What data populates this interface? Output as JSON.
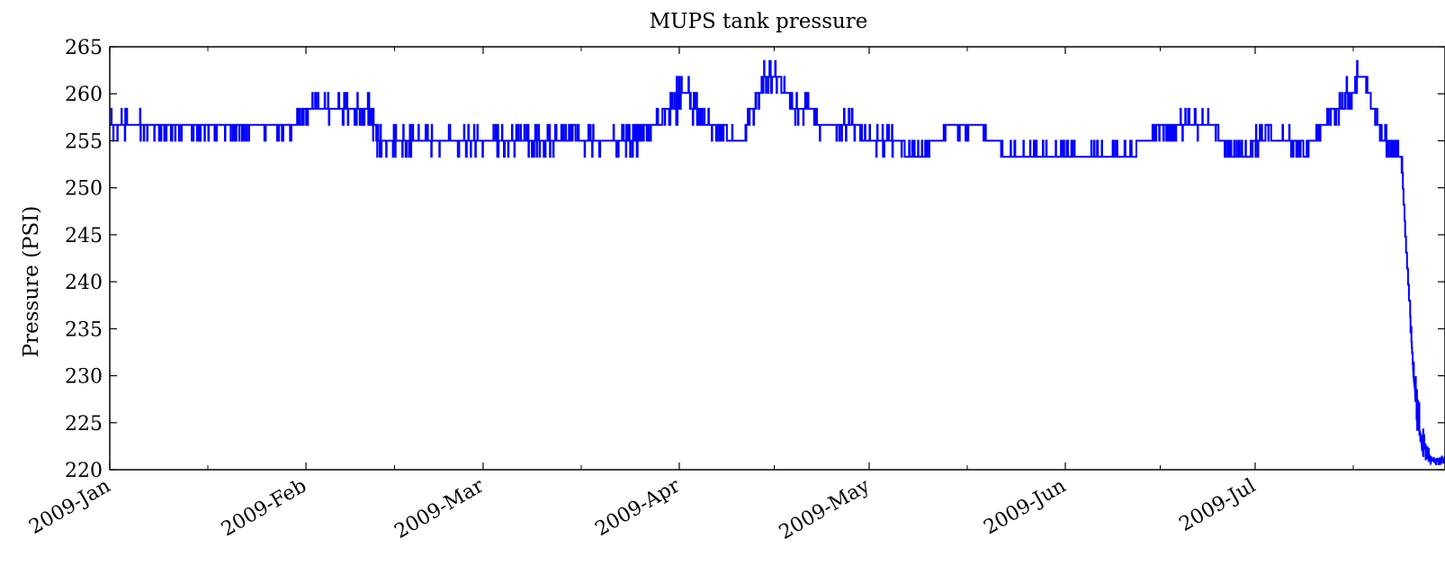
{
  "chart_data": {
    "type": "line",
    "title": "MUPS tank pressure",
    "xlabel": "",
    "ylabel": "Pressure (PSI)",
    "ylim": [
      220,
      265
    ],
    "xlim": [
      "2009-01-01",
      "2009-07-31"
    ],
    "y_ticks": [
      220,
      225,
      230,
      235,
      240,
      245,
      250,
      255,
      260,
      265
    ],
    "x_ticks": [
      {
        "date": "2009-01-01",
        "label": "2009-Jan"
      },
      {
        "date": "2009-02-01",
        "label": "2009-Feb"
      },
      {
        "date": "2009-03-01",
        "label": "2009-Mar"
      },
      {
        "date": "2009-04-01",
        "label": "2009-Apr"
      },
      {
        "date": "2009-05-01",
        "label": "2009-May"
      },
      {
        "date": "2009-06-01",
        "label": "2009-Jun"
      },
      {
        "date": "2009-07-01",
        "label": "2009-Jul"
      }
    ],
    "grid": false,
    "series": [
      {
        "color": "#0000ff",
        "x": [
          "2009-01-01",
          "2009-01-03",
          "2009-01-06",
          "2009-01-09",
          "2009-01-12",
          "2009-01-15",
          "2009-01-18",
          "2009-01-21",
          "2009-01-24",
          "2009-01-27",
          "2009-01-30",
          "2009-02-02",
          "2009-02-05",
          "2009-02-08",
          "2009-02-11",
          "2009-02-13",
          "2009-02-16",
          "2009-02-19",
          "2009-02-22",
          "2009-02-25",
          "2009-02-28",
          "2009-03-03",
          "2009-03-06",
          "2009-03-09",
          "2009-03-12",
          "2009-03-15",
          "2009-03-18",
          "2009-03-21",
          "2009-03-24",
          "2009-03-27",
          "2009-03-30",
          "2009-04-02",
          "2009-04-05",
          "2009-04-08",
          "2009-04-11",
          "2009-04-14",
          "2009-04-16",
          "2009-04-19",
          "2009-04-22",
          "2009-04-25",
          "2009-04-28",
          "2009-05-01",
          "2009-05-04",
          "2009-05-07",
          "2009-05-10",
          "2009-05-13",
          "2009-05-16",
          "2009-05-19",
          "2009-05-22",
          "2009-05-25",
          "2009-05-28",
          "2009-05-31",
          "2009-06-03",
          "2009-06-06",
          "2009-06-09",
          "2009-06-12",
          "2009-06-15",
          "2009-06-18",
          "2009-06-21",
          "2009-06-24",
          "2009-06-27",
          "2009-06-30",
          "2009-07-03",
          "2009-07-06",
          "2009-07-09",
          "2009-07-12",
          "2009-07-15",
          "2009-07-18",
          "2009-07-21",
          "2009-07-24",
          "2009-07-26",
          "2009-07-27",
          "2009-07-28",
          "2009-07-29",
          "2009-07-30",
          "2009-07-31"
        ],
        "y": [
          256,
          257,
          256,
          256,
          256,
          256,
          256,
          256,
          256,
          256,
          256,
          259,
          258,
          259,
          258,
          255,
          255,
          255,
          255,
          255,
          255,
          255,
          255,
          255,
          255,
          256,
          255,
          255,
          255,
          256,
          258,
          260,
          257,
          256,
          255,
          261,
          262,
          259,
          258,
          256,
          257,
          255,
          255,
          254,
          254,
          256,
          256,
          256,
          254,
          253,
          254,
          254,
          254,
          254,
          254,
          254,
          256,
          256,
          257,
          257,
          254,
          254,
          256,
          255,
          254,
          257,
          259,
          262,
          255,
          254,
          230,
          224,
          222,
          221,
          221,
          221
        ],
        "noise_amplitude": [
          1.5,
          1.5,
          1.2,
          1.2,
          1.0,
          1.0,
          0.5,
          0.5,
          0.5,
          1.0,
          1.0,
          1.5,
          1.5,
          1.5,
          1.5,
          1.2,
          1.2,
          1.2,
          1.2,
          1.2,
          1.2,
          1.2,
          1.2,
          1.2,
          1.2,
          1.2,
          1.2,
          1.2,
          1.2,
          1.0,
          1.5,
          1.5,
          1.5,
          1.0,
          1.0,
          1.5,
          1.5,
          1.5,
          1.5,
          1.0,
          1.0,
          1.0,
          1.0,
          0.5,
          0.5,
          1.0,
          1.0,
          0.5,
          1.2,
          1.2,
          0.5,
          0.5,
          0.5,
          0.5,
          0.5,
          0.5,
          1.0,
          1.0,
          1.0,
          1.0,
          1.0,
          1.0,
          1.0,
          1.0,
          0.5,
          1.0,
          1.5,
          1.5,
          1.0,
          1.0,
          2.0,
          1.0,
          0.5,
          0.3,
          0.3,
          0.3
        ]
      }
    ]
  }
}
